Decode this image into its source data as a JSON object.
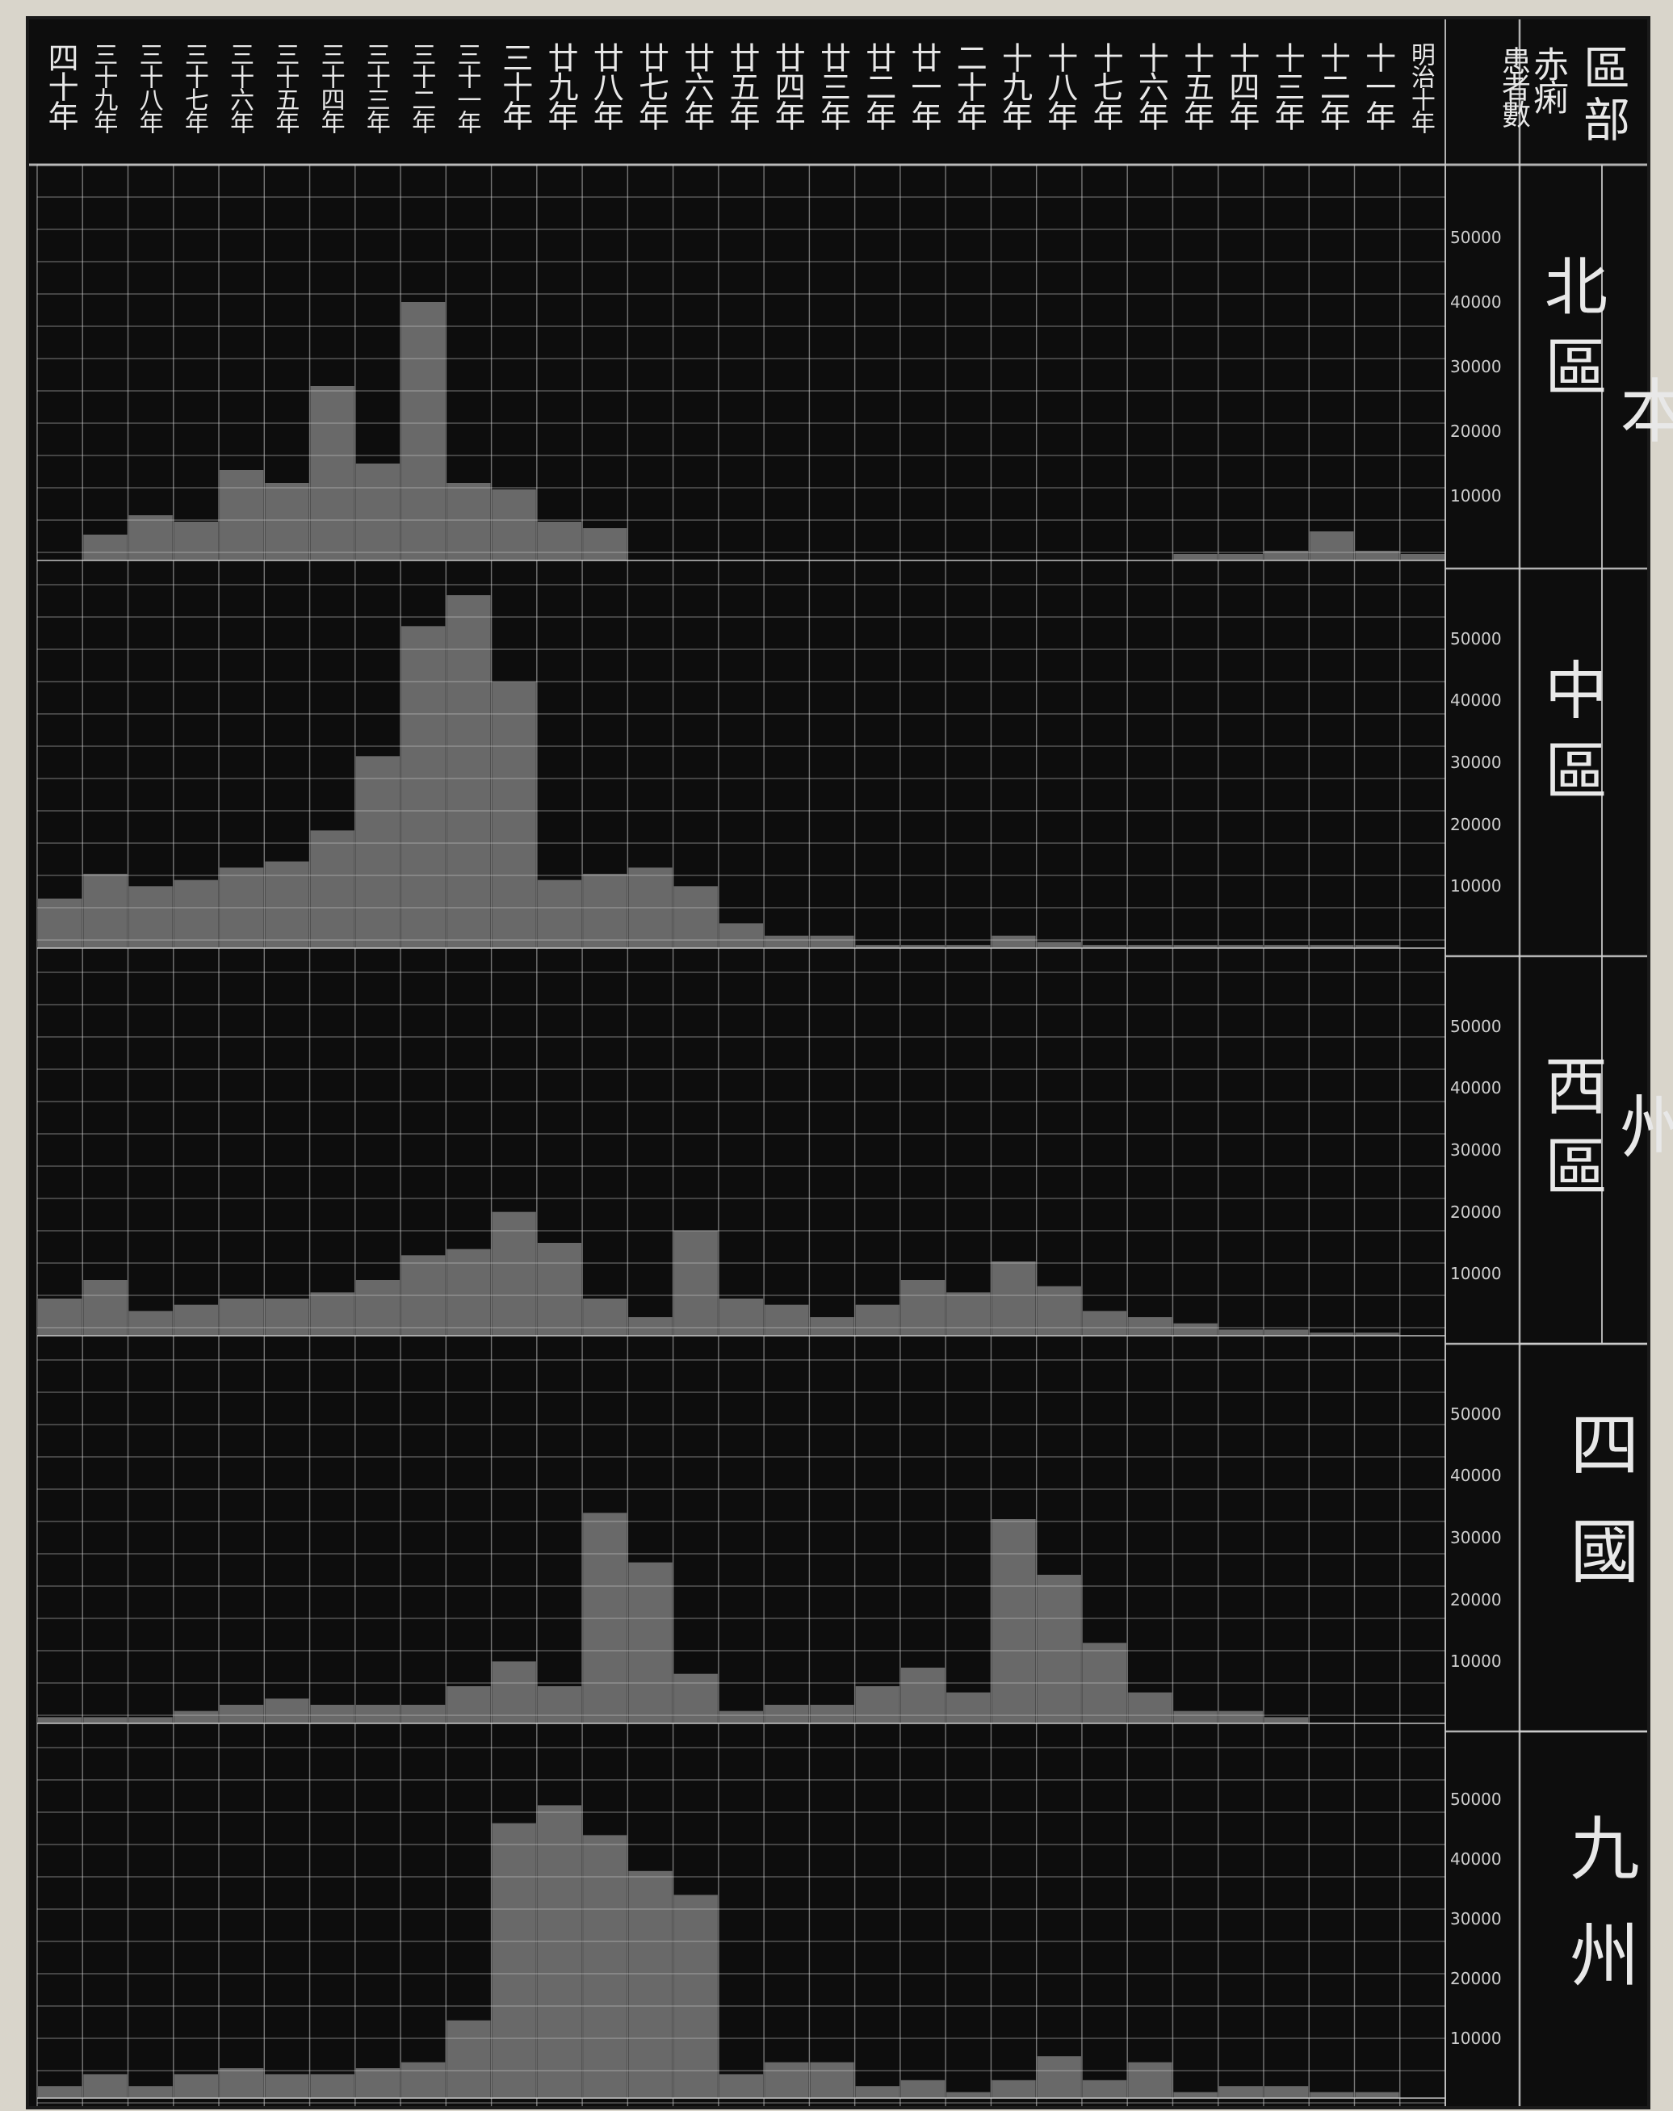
{
  "header": {
    "corner_label": "區部",
    "metric_label": "赤痢患者數",
    "years": [
      "明治十年",
      "十一年",
      "十二年",
      "十三年",
      "十四年",
      "十五年",
      "十六年",
      "十七年",
      "十八年",
      "十九年",
      "二十年",
      "廿一年",
      "廿二年",
      "廿三年",
      "廿四年",
      "廿五年",
      "廿六年",
      "廿七年",
      "廿八年",
      "廿九年",
      "三十年",
      "三十一年",
      "三十二年",
      "三十三年",
      "三十四年",
      "三十五年",
      "三十六年",
      "三十七年",
      "三十八年",
      "三十九年",
      "四十年"
    ]
  },
  "labels": {
    "honshu": "本州",
    "north": "北區",
    "central": "中區",
    "west": "西區",
    "shikoku": "四國",
    "kyushu": "九州"
  },
  "tick_labels": [
    "10000",
    "20000",
    "30000",
    "40000",
    "50000"
  ],
  "colors": {
    "background": "#0d0d0d",
    "bar_fill": "#6f6f6f",
    "grid": "#cfcfcf",
    "text": "#e8e8e8",
    "paper": "#d9d5cb"
  },
  "chart_data": [
    {
      "type": "bar",
      "region": "本州 北區",
      "categories": [
        "明治十年",
        "十一年",
        "十二年",
        "十三年",
        "十四年",
        "十五年",
        "十六年",
        "十七年",
        "十八年",
        "十九年",
        "二十年",
        "廿一年",
        "廿二年",
        "廿三年",
        "廿四年",
        "廿五年",
        "廿六年",
        "廿七年",
        "廿八年",
        "廿九年",
        "三十年",
        "三十一年",
        "三十二年",
        "三十三年",
        "三十四年",
        "三十五年",
        "三十六年",
        "三十七年",
        "三十八年",
        "三十九年",
        "四十年"
      ],
      "values": [
        1000,
        1500,
        4500,
        1500,
        1000,
        1000,
        null,
        null,
        null,
        null,
        null,
        null,
        null,
        null,
        null,
        null,
        null,
        null,
        5000,
        6000,
        11000,
        12000,
        40000,
        15000,
        27000,
        12000,
        14000,
        6000,
        7000,
        4000,
        null
      ],
      "ylim": [
        0,
        60000
      ]
    },
    {
      "type": "bar",
      "region": "本州 中區",
      "categories": [
        "明治十年",
        "十一年",
        "十二年",
        "十三年",
        "十四年",
        "十五年",
        "十六年",
        "十七年",
        "十八年",
        "十九年",
        "二十年",
        "廿一年",
        "廿二年",
        "廿三年",
        "廿四年",
        "廿五年",
        "廿六年",
        "廿七年",
        "廿八年",
        "廿九年",
        "三十年",
        "三十一年",
        "三十二年",
        "三十三年",
        "三十四年",
        "三十五年",
        "三十六年",
        "三十七年",
        "三十八年",
        "三十九年",
        "四十年"
      ],
      "values": [
        null,
        500,
        500,
        500,
        500,
        500,
        500,
        500,
        1000,
        2000,
        500,
        500,
        500,
        2000,
        2000,
        4000,
        10000,
        13000,
        12000,
        11000,
        43000,
        57000,
        52000,
        31000,
        19000,
        14000,
        13000,
        11000,
        10000,
        12000,
        8000
      ],
      "ylim": [
        0,
        60000
      ]
    },
    {
      "type": "bar",
      "region": "本州 西區",
      "categories": [
        "明治十年",
        "十一年",
        "十二年",
        "十三年",
        "十四年",
        "十五年",
        "十六年",
        "十七年",
        "十八年",
        "十九年",
        "二十年",
        "廿一年",
        "廿二年",
        "廿三年",
        "廿四年",
        "廿五年",
        "廿六年",
        "廿七年",
        "廿八年",
        "廿九年",
        "三十年",
        "三十一年",
        "三十二年",
        "三十三年",
        "三十四年",
        "三十五年",
        "三十六年",
        "三十七年",
        "三十八年",
        "三十九年",
        "四十年"
      ],
      "values": [
        null,
        500,
        500,
        1000,
        1000,
        2000,
        3000,
        4000,
        8000,
        12000,
        7000,
        9000,
        5000,
        3000,
        5000,
        6000,
        17000,
        3000,
        6000,
        15000,
        20000,
        14000,
        13000,
        9000,
        7000,
        6000,
        6000,
        5000,
        4000,
        9000,
        6000
      ],
      "ylim": [
        0,
        60000
      ]
    },
    {
      "type": "bar",
      "region": "四國",
      "categories": [
        "明治十年",
        "十一年",
        "十二年",
        "十三年",
        "十四年",
        "十五年",
        "十六年",
        "十七年",
        "十八年",
        "十九年",
        "二十年",
        "廿一年",
        "廿二年",
        "廿三年",
        "廿四年",
        "廿五年",
        "廿六年",
        "廿七年",
        "廿八年",
        "廿九年",
        "三十年",
        "三十一年",
        "三十二年",
        "三十三年",
        "三十四年",
        "三十五年",
        "三十六年",
        "三十七年",
        "三十八年",
        "三十九年",
        "四十年"
      ],
      "values": [
        null,
        null,
        null,
        1000,
        2000,
        2000,
        5000,
        13000,
        24000,
        33000,
        5000,
        9000,
        6000,
        3000,
        3000,
        2000,
        8000,
        26000,
        34000,
        6000,
        10000,
        6000,
        3000,
        3000,
        3000,
        4000,
        3000,
        2000,
        1000,
        1000,
        1000
      ],
      "ylim": [
        0,
        60000
      ]
    },
    {
      "type": "bar",
      "region": "九州",
      "categories": [
        "明治十年",
        "十一年",
        "十二年",
        "十三年",
        "十四年",
        "十五年",
        "十六年",
        "十七年",
        "十八年",
        "十九年",
        "二十年",
        "廿一年",
        "廿二年",
        "廿三年",
        "廿四年",
        "廿五年",
        "廿六年",
        "廿七年",
        "廿八年",
        "廿九年",
        "三十年",
        "三十一年",
        "三十二年",
        "三十三年",
        "三十四年",
        "三十五年",
        "三十六年",
        "三十七年",
        "三十八年",
        "三十九年",
        "四十年"
      ],
      "values": [
        null,
        1000,
        1000,
        2000,
        2000,
        1000,
        6000,
        3000,
        7000,
        3000,
        1000,
        3000,
        2000,
        6000,
        6000,
        4000,
        34000,
        38000,
        44000,
        49000,
        46000,
        13000,
        6000,
        5000,
        4000,
        4000,
        5000,
        4000,
        2000,
        4000,
        2000
      ],
      "ylim": [
        0,
        60000
      ]
    }
  ]
}
